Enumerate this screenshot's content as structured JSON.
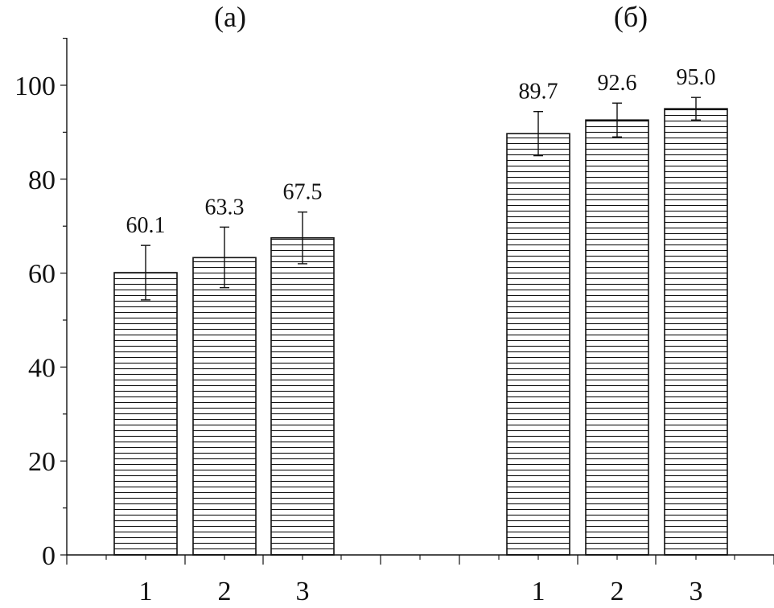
{
  "chart_data": {
    "type": "bar",
    "panels": [
      {
        "label": "(a)",
        "categories": [
          "1",
          "2",
          "3"
        ],
        "values": [
          60.1,
          63.3,
          67.5
        ],
        "value_labels": [
          "60.1",
          "63.3",
          "67.5"
        ],
        "error_low": [
          54.3,
          56.9,
          62.0
        ],
        "error_high": [
          65.9,
          69.8,
          73.0
        ]
      },
      {
        "label": "(б)",
        "categories": [
          "1",
          "2",
          "3"
        ],
        "values": [
          89.7,
          92.6,
          95.0
        ],
        "value_labels": [
          "89.7",
          "92.6",
          "95.0"
        ],
        "error_low": [
          85.0,
          89.0,
          92.6
        ],
        "error_high": [
          94.4,
          96.2,
          97.4
        ]
      }
    ],
    "ylim": [
      0,
      110
    ],
    "yticks": [
      0,
      20,
      40,
      60,
      80,
      100
    ],
    "ytick_labels": [
      "0",
      "20",
      "40",
      "60",
      "80",
      "100"
    ],
    "xlabel": "",
    "ylabel": "",
    "bar_fill": "horizontal-hatch",
    "grid": false,
    "legend": "none",
    "colors": {
      "bar_edge": "#111111",
      "hatch": "#111111",
      "background": "#ffffff"
    }
  }
}
